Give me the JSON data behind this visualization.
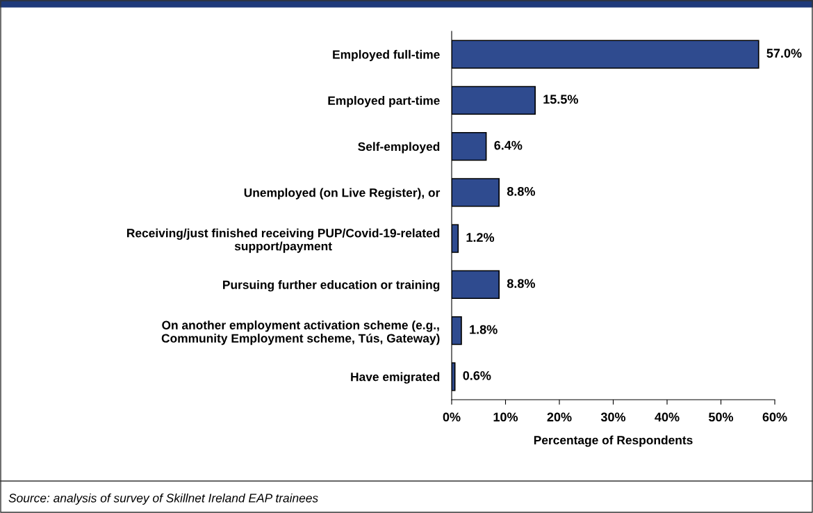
{
  "chart_data": {
    "type": "bar",
    "orientation": "horizontal",
    "categories": [
      "Employed full-time",
      "Employed part-time",
      "Self-employed",
      "Unemployed (on Live Register), or",
      "Receiving/just finished receiving PUP/Covid-19-related\nsupport/payment",
      "Pursuing further education or training",
      "On another employment activation scheme (e.g.,\nCommunity Employment scheme, Tús, Gateway)",
      "Have emigrated"
    ],
    "values": [
      57.0,
      15.5,
      6.4,
      8.8,
      1.2,
      8.8,
      1.8,
      0.6
    ],
    "value_labels": [
      "57.0%",
      "15.5%",
      "6.4%",
      "8.8%",
      "1.2%",
      "8.8%",
      "1.8%",
      "0.6%"
    ],
    "color": "#2f4b8f",
    "xlim": [
      0,
      60
    ],
    "xticks": [
      {
        "value": 0,
        "label": "0%"
      },
      {
        "value": 10,
        "label": "10%"
      },
      {
        "value": 20,
        "label": "20%"
      },
      {
        "value": 30,
        "label": "30%"
      },
      {
        "value": 40,
        "label": "40%"
      },
      {
        "value": 50,
        "label": "50%"
      },
      {
        "value": 60,
        "label": "60%"
      }
    ],
    "xlabel": "Percentage of Respondents",
    "grid": false,
    "legend": false,
    "annotations": [
      "Source: analysis of survey of Skillnet Ireland EAP trainees"
    ]
  }
}
